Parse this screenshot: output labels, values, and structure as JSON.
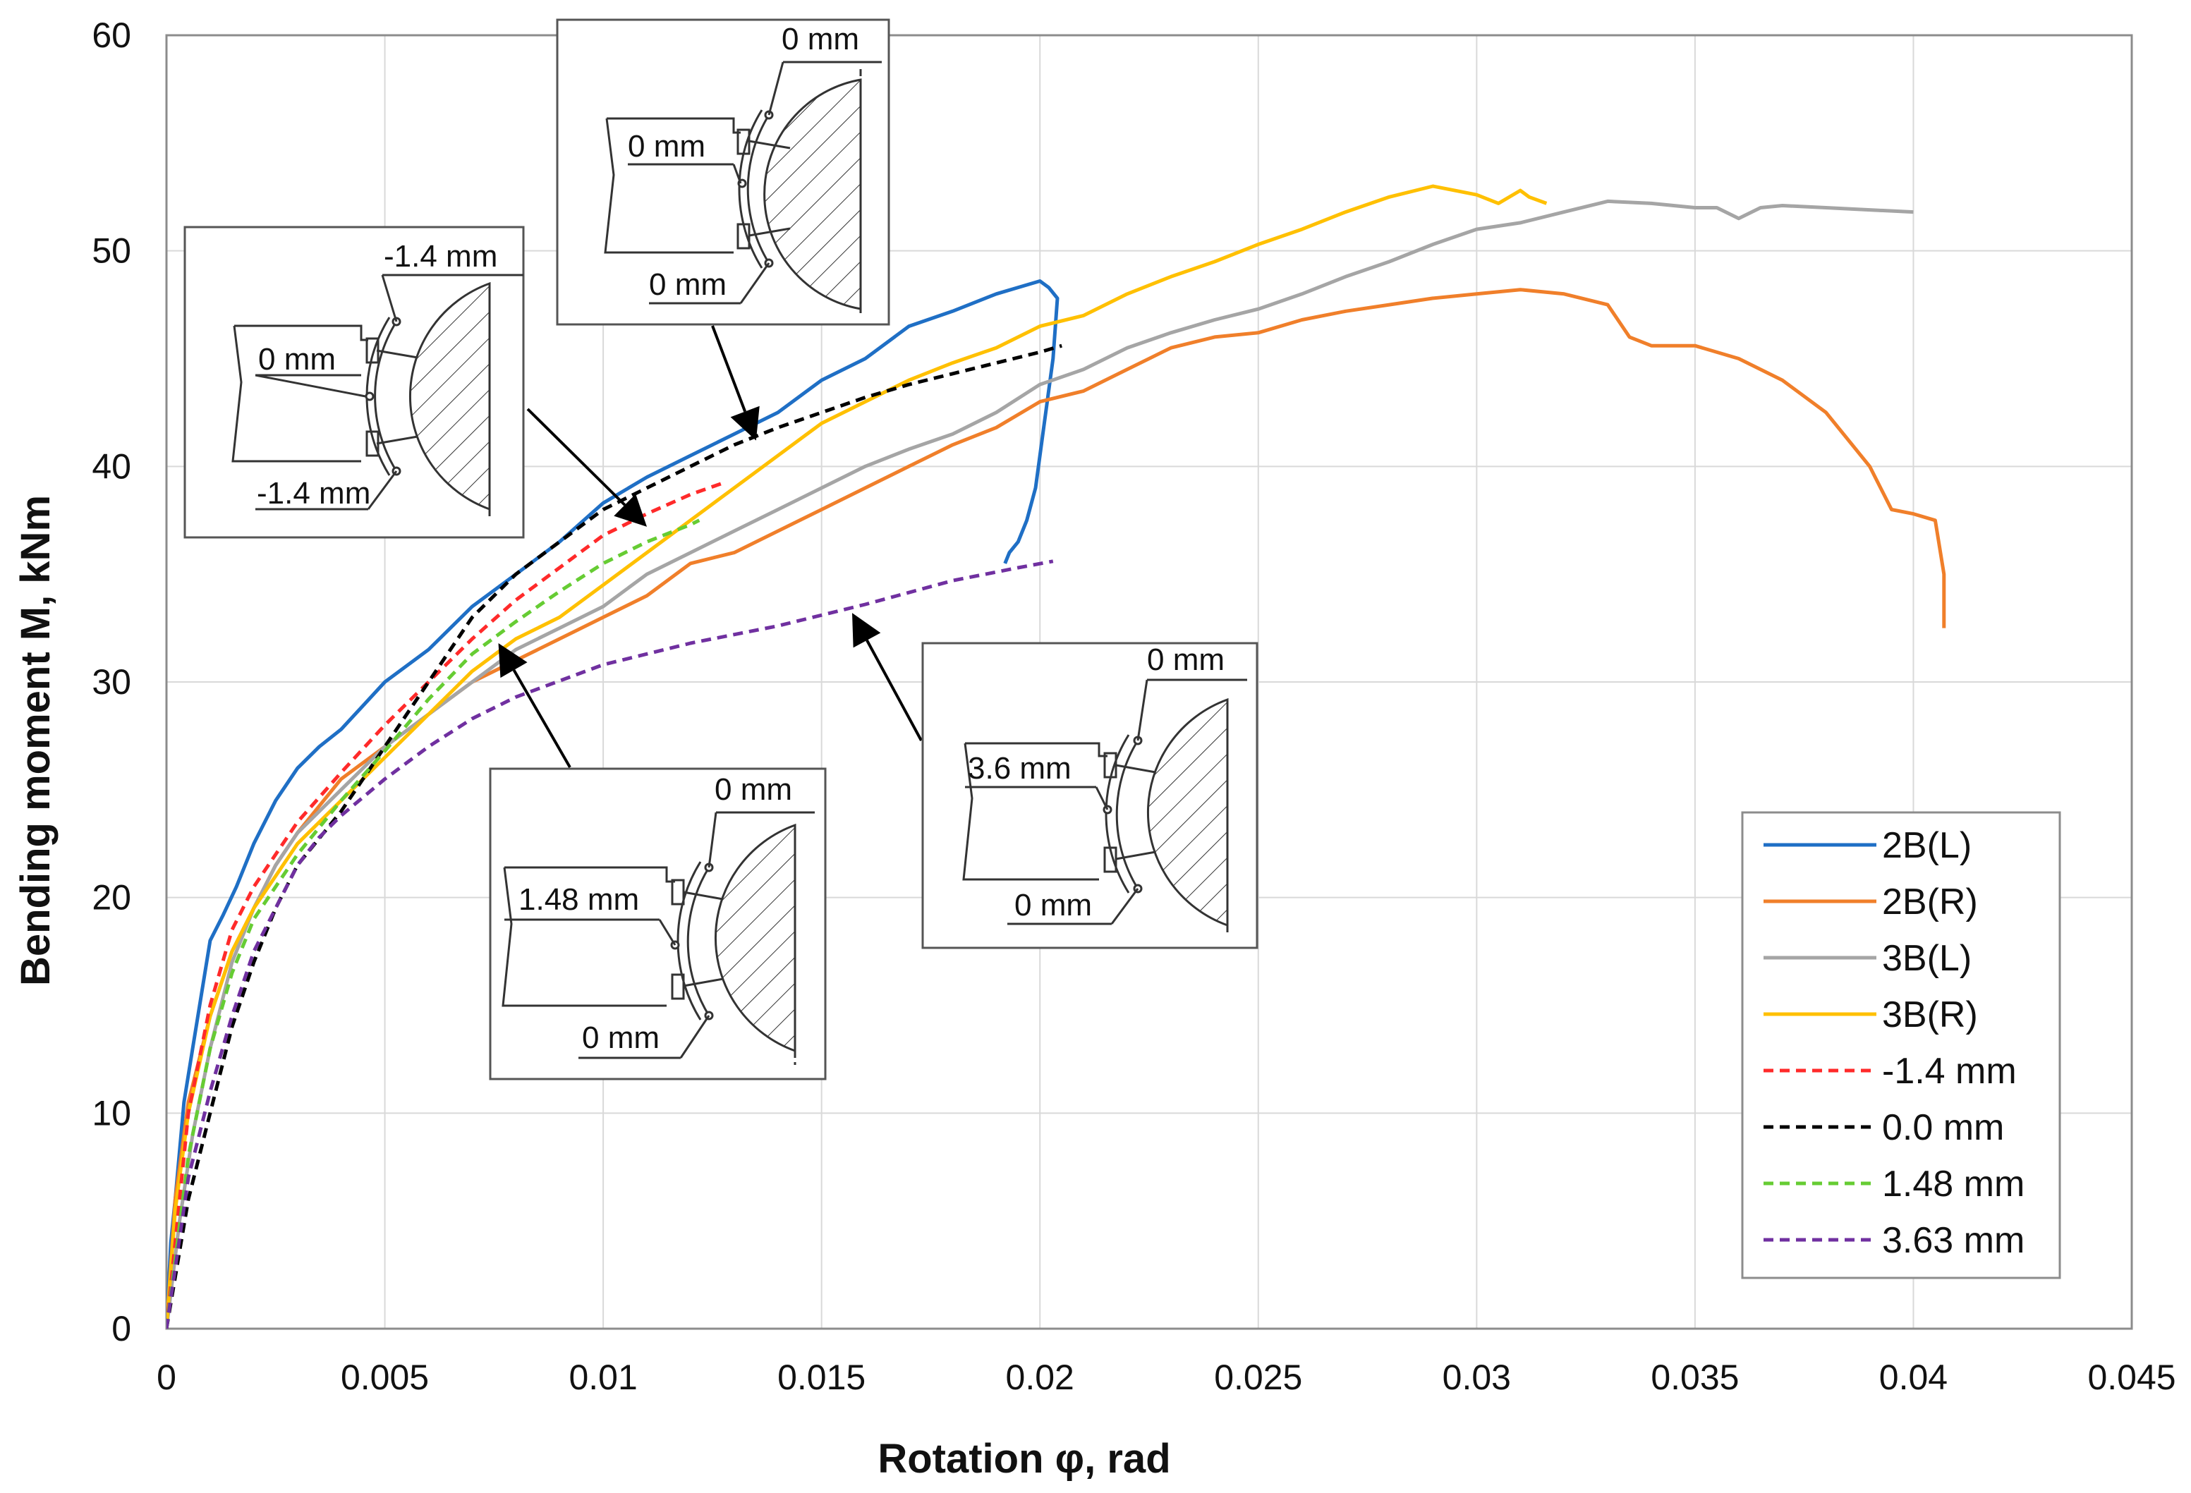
{
  "chart_data": {
    "type": "line",
    "title": "",
    "xlabel": "Rotation φ, rad",
    "ylabel": "Bending  moment  M, kNm",
    "xlim": [
      0,
      0.045
    ],
    "ylim": [
      0,
      60
    ],
    "xticks": [
      0,
      0.005,
      0.01,
      0.015,
      0.02,
      0.025,
      0.03,
      0.035,
      0.04,
      0.045
    ],
    "xtick_labels": [
      "0",
      "0.005",
      "0.01",
      "0.015",
      "0.02",
      "0.025",
      "0.03",
      "0.035",
      "0.04",
      "0.045"
    ],
    "yticks": [
      0,
      10,
      20,
      30,
      40,
      50,
      60
    ],
    "ytick_labels": [
      "0",
      "10",
      "20",
      "30",
      "40",
      "50",
      "60"
    ],
    "grid": true,
    "legend_position": "bottom-right",
    "series": [
      {
        "name": "2B(L)",
        "color": "#1f6fc5",
        "style": "solid",
        "x": [
          0,
          0.0001,
          0.0002,
          0.0004,
          0.0006,
          0.0008,
          0.001,
          0.0013,
          0.0016,
          0.002,
          0.0025,
          0.003,
          0.0035,
          0.004,
          0.005,
          0.006,
          0.007,
          0.008,
          0.009,
          0.01,
          0.011,
          0.012,
          0.013,
          0.014,
          0.015,
          0.016,
          0.017,
          0.018,
          0.019,
          0.0195,
          0.02,
          0.0202,
          0.0204,
          0.0203,
          0.0201,
          0.0199,
          0.0197,
          0.0195,
          0.0193,
          0.0192
        ],
        "y": [
          0,
          4,
          6,
          10.5,
          13,
          15.5,
          18,
          19.2,
          20.5,
          22.5,
          24.5,
          26,
          27,
          27.8,
          30,
          31.5,
          33.5,
          35,
          36.5,
          38.3,
          39.5,
          40.5,
          41.5,
          42.5,
          44,
          45,
          46.5,
          47.2,
          48,
          48.3,
          48.6,
          48.3,
          47.8,
          45,
          42,
          39,
          37.5,
          36.5,
          36,
          35.5
        ]
      },
      {
        "name": "2B(R)",
        "color": "#f07f2a",
        "style": "solid",
        "x": [
          0,
          0.0002,
          0.0005,
          0.001,
          0.0015,
          0.002,
          0.0025,
          0.003,
          0.004,
          0.005,
          0.006,
          0.007,
          0.008,
          0.009,
          0.01,
          0.011,
          0.012,
          0.013,
          0.014,
          0.015,
          0.016,
          0.017,
          0.018,
          0.019,
          0.02,
          0.021,
          0.022,
          0.023,
          0.024,
          0.025,
          0.026,
          0.027,
          0.028,
          0.029,
          0.03,
          0.031,
          0.032,
          0.033,
          0.0335,
          0.034,
          0.035,
          0.036,
          0.037,
          0.038,
          0.039,
          0.0395,
          0.04,
          0.0405,
          0.0407,
          0.0407
        ],
        "y": [
          0,
          6,
          10.5,
          14.5,
          17.5,
          19.5,
          21.5,
          23,
          25.5,
          27,
          28.5,
          30,
          31,
          32,
          33,
          34,
          35.5,
          36,
          37,
          38,
          39,
          40,
          41,
          41.8,
          43,
          43.5,
          44.5,
          45.5,
          46,
          46.2,
          46.8,
          47.2,
          47.5,
          47.8,
          48,
          48.2,
          48,
          47.5,
          46,
          45.6,
          45.6,
          45,
          44,
          42.5,
          40,
          38,
          37.8,
          37.5,
          35,
          32.5
        ]
      },
      {
        "name": "3B(L)",
        "color": "#a5a5a5",
        "style": "solid",
        "x": [
          0,
          0.0003,
          0.0006,
          0.001,
          0.0015,
          0.002,
          0.0025,
          0.003,
          0.004,
          0.005,
          0.006,
          0.007,
          0.008,
          0.009,
          0.01,
          0.011,
          0.012,
          0.013,
          0.014,
          0.015,
          0.016,
          0.017,
          0.018,
          0.019,
          0.02,
          0.021,
          0.022,
          0.023,
          0.024,
          0.025,
          0.026,
          0.027,
          0.028,
          0.029,
          0.03,
          0.031,
          0.032,
          0.033,
          0.034,
          0.035,
          0.0355,
          0.036,
          0.0365,
          0.037,
          0.038,
          0.039,
          0.04
        ],
        "y": [
          0,
          5,
          9,
          13,
          17,
          19.5,
          21.5,
          23,
          25,
          27,
          28.5,
          30,
          31.5,
          32.5,
          33.5,
          35,
          36,
          37,
          38,
          39,
          40,
          40.8,
          41.5,
          42.5,
          43.8,
          44.5,
          45.5,
          46.2,
          46.8,
          47.3,
          48,
          48.8,
          49.5,
          50.3,
          51,
          51.3,
          51.8,
          52.3,
          52.2,
          52,
          52,
          51.5,
          52,
          52.1,
          52,
          51.9,
          51.8
        ]
      },
      {
        "name": "3B(R)",
        "color": "#ffc000",
        "style": "solid",
        "x": [
          0,
          0.0002,
          0.0005,
          0.001,
          0.0015,
          0.002,
          0.0025,
          0.003,
          0.004,
          0.005,
          0.006,
          0.007,
          0.008,
          0.009,
          0.01,
          0.011,
          0.012,
          0.013,
          0.014,
          0.015,
          0.016,
          0.017,
          0.018,
          0.019,
          0.02,
          0.021,
          0.022,
          0.023,
          0.024,
          0.025,
          0.026,
          0.027,
          0.028,
          0.029,
          0.0295,
          0.03,
          0.0305,
          0.031,
          0.0312,
          0.0316
        ],
        "y": [
          0,
          5.5,
          10,
          14.5,
          17.5,
          19.5,
          21,
          22.5,
          24.5,
          26.5,
          28.5,
          30.5,
          32,
          33,
          34.5,
          36,
          37.5,
          39,
          40.5,
          42,
          43,
          44,
          44.8,
          45.5,
          46.5,
          47,
          48,
          48.8,
          49.5,
          50.3,
          51,
          51.8,
          52.5,
          53,
          52.8,
          52.6,
          52.2,
          52.8,
          52.5,
          52.2
        ]
      },
      {
        "name": "-1.4 mm",
        "color": "#ff2a2a",
        "style": "dashed",
        "x": [
          0,
          0.0005,
          0.001,
          0.0015,
          0.002,
          0.003,
          0.004,
          0.005,
          0.006,
          0.007,
          0.008,
          0.009,
          0.01,
          0.011,
          0.012,
          0.0127
        ],
        "y": [
          0,
          10,
          15,
          18.5,
          20.5,
          23.5,
          25.8,
          28,
          30,
          32,
          33.8,
          35.3,
          36.8,
          37.8,
          38.7,
          39.2
        ]
      },
      {
        "name": "0.0 mm",
        "color": "#000000",
        "style": "dashed",
        "x": [
          0,
          0.0005,
          0.001,
          0.0015,
          0.002,
          0.0025,
          0.003,
          0.004,
          0.005,
          0.006,
          0.007,
          0.008,
          0.009,
          0.01,
          0.011,
          0.012,
          0.013,
          0.014,
          0.015,
          0.016,
          0.017,
          0.018,
          0.019,
          0.02,
          0.0205
        ],
        "y": [
          0,
          6,
          10,
          14,
          17,
          19.5,
          21.5,
          24,
          27,
          30,
          33,
          35,
          36.5,
          38,
          39,
          40,
          41,
          41.8,
          42.5,
          43.2,
          43.8,
          44.3,
          44.8,
          45.3,
          45.6
        ]
      },
      {
        "name": "1.48 mm",
        "color": "#66cc33",
        "style": "dashed",
        "x": [
          0,
          0.0005,
          0.001,
          0.0015,
          0.002,
          0.003,
          0.004,
          0.005,
          0.006,
          0.007,
          0.008,
          0.009,
          0.01,
          0.011,
          0.012,
          0.0122
        ],
        "y": [
          0,
          8,
          13,
          16.5,
          19,
          22,
          24.5,
          26.8,
          29.2,
          31.3,
          32.8,
          34.2,
          35.5,
          36.5,
          37.3,
          37.5
        ]
      },
      {
        "name": "3.63 mm",
        "color": "#7030a0",
        "style": "dashed",
        "x": [
          0,
          0.0005,
          0.001,
          0.0015,
          0.002,
          0.003,
          0.0035,
          0.004,
          0.005,
          0.006,
          0.007,
          0.008,
          0.01,
          0.012,
          0.014,
          0.016,
          0.018,
          0.0195,
          0.0203
        ],
        "y": [
          0,
          7,
          11,
          14.5,
          17.5,
          21.5,
          22.8,
          23.8,
          25.5,
          27,
          28.3,
          29.3,
          30.8,
          31.8,
          32.6,
          33.6,
          34.7,
          35.3,
          35.6
        ]
      }
    ],
    "annotations": [
      {
        "top_label": "-1.4 mm",
        "middle_label": "0 mm",
        "bottom_label": "-1.4 mm",
        "points_to": [
          0.011,
          37.2
        ]
      },
      {
        "top_label": "0 mm",
        "middle_label": "0 mm",
        "bottom_label": "0 mm",
        "points_to": [
          0.0135,
          41.2
        ]
      },
      {
        "top_label": "0 mm",
        "middle_label": "1.48 mm",
        "bottom_label": "0 mm",
        "points_to": [
          0.0076,
          31.8
        ]
      },
      {
        "top_label": "0 mm",
        "middle_label": "3.6 mm",
        "bottom_label": "0 mm",
        "points_to": [
          0.0157,
          33.2
        ]
      }
    ]
  }
}
